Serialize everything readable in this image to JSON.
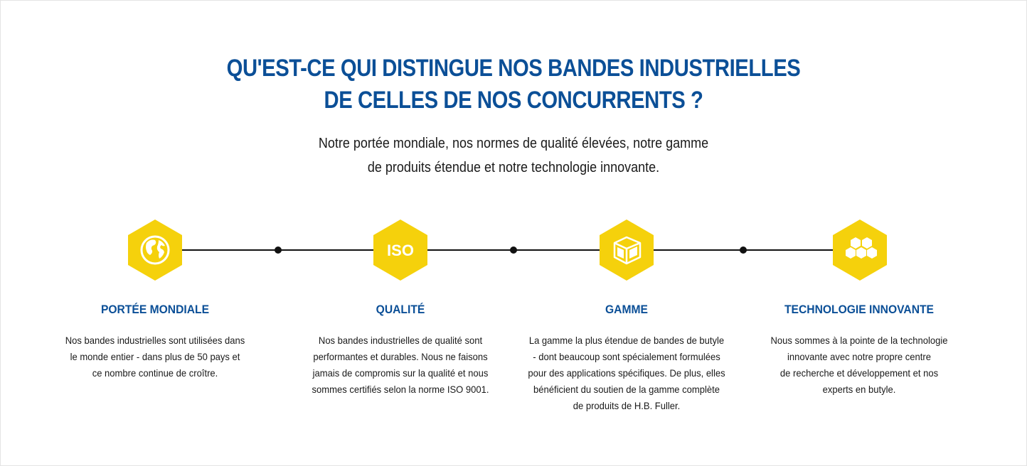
{
  "header": {
    "title_line1": "QU'EST-CE QUI DISTINGUE NOS BANDES INDUSTRIELLES",
    "title_line2": "DE CELLES DE NOS CONCURRENTS ?",
    "subtitle_line1": "Notre portée mondiale, nos normes de qualité élevées, notre gamme",
    "subtitle_line2": "de produits étendue et notre technologie innovante."
  },
  "colors": {
    "accent_yellow": "#f5d10c",
    "title_blue": "#0b4f97"
  },
  "features": [
    {
      "icon": "globe-icon",
      "title": "PORTÉE MONDIALE",
      "lines": [
        "Nos bandes industrielles sont utilisées dans",
        "le monde entier - dans plus de 50 pays et",
        "ce nombre continue de croître."
      ]
    },
    {
      "icon": "iso-icon",
      "icon_text": "ISO",
      "title": "QUALITÉ",
      "lines": [
        "Nos bandes industrielles de qualité sont",
        "performantes et durables. Nous ne faisons",
        "jamais de compromis sur la qualité et nous",
        "sommes certifiés selon la norme ISO 9001."
      ]
    },
    {
      "icon": "product-box-icon",
      "title": "GAMME",
      "lines": [
        "La gamme la plus étendue de bandes de butyle",
        "- dont beaucoup sont spécialement formulées",
        "pour des applications spécifiques. De plus, elles",
        "bénéficient du soutien de la gamme complète",
        "de produits de H.B. Fuller."
      ]
    },
    {
      "icon": "honeycomb-icon",
      "title": "TECHNOLOGIE INNOVANTE",
      "lines": [
        "Nous sommes à la pointe de la technologie",
        "innovante avec notre propre centre",
        "de recherche et développement et nos",
        "experts en butyle."
      ]
    }
  ]
}
